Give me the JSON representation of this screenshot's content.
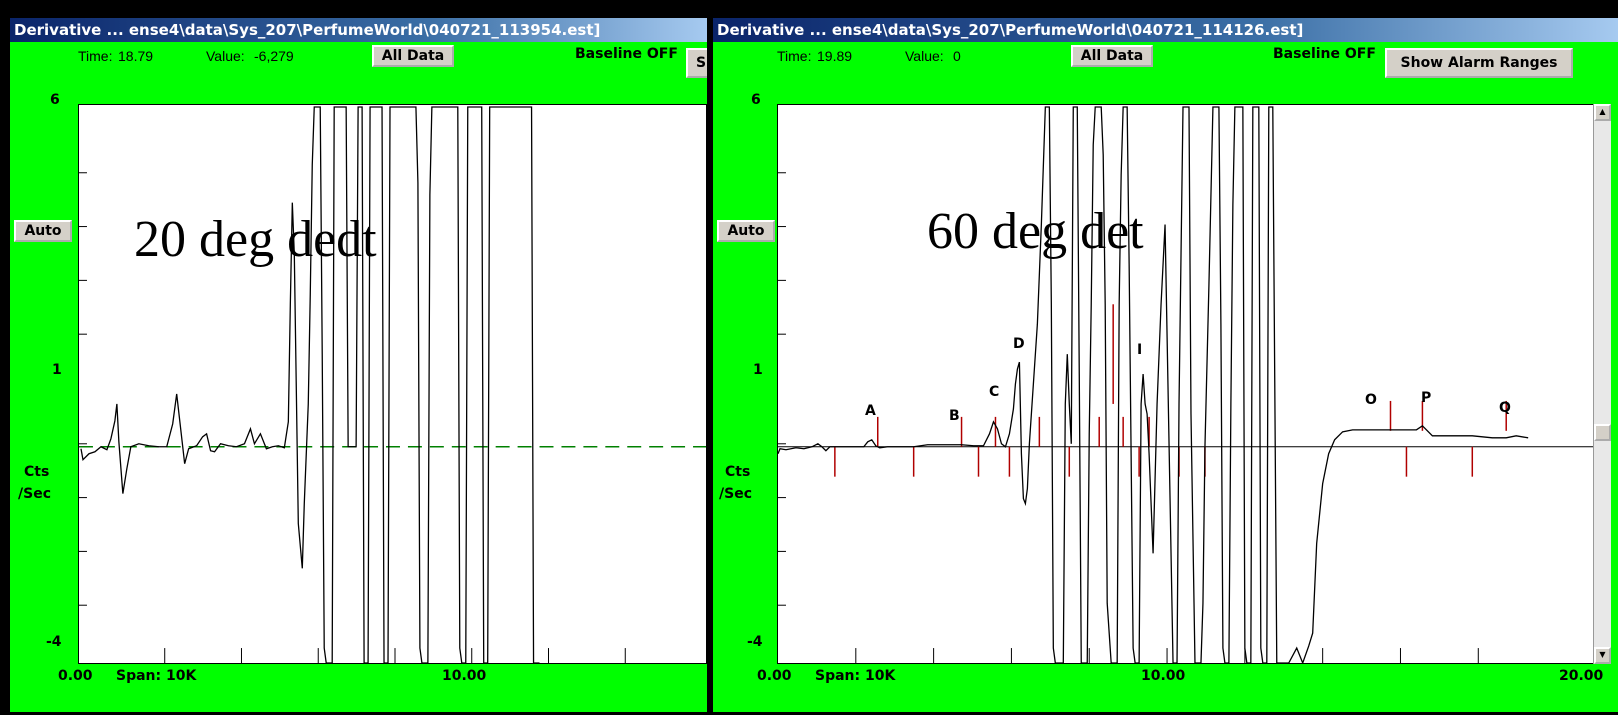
{
  "left": {
    "title": "Derivative ... ense4\\data\\Sys_207\\PerfumeWorld\\040721_113954.est]",
    "time_label": "Time:",
    "time_value": "18.79",
    "value_label": "Value:",
    "value_value": "-6,279",
    "all_data": "All Data",
    "baseline": "Baseline OFF",
    "cut_btn": "S",
    "auto": "Auto",
    "y_top": "6",
    "y_mid": "1",
    "y_bot": "-4",
    "y_unit1": "Cts",
    "y_unit2": "/Sec",
    "x_start": "0.00",
    "span": "Span: 10K",
    "x_mid": "10.00",
    "overlay": "20 deg dedt"
  },
  "right": {
    "title": "Derivative ... ense4\\data\\Sys_207\\PerfumeWorld\\040721_114126.est]",
    "time_label": "Time:",
    "time_value": "19.89",
    "value_label": "Value:",
    "value_value": "0",
    "all_data": "All Data",
    "baseline": "Baseline OFF",
    "alarm": "Show Alarm Ranges",
    "auto": "Auto",
    "y_top": "6",
    "y_mid": "1",
    "y_bot": "-4",
    "y_unit1": "Cts",
    "y_unit2": "/Sec",
    "x_start": "0.00",
    "span": "Span: 10K",
    "x_mid": "10.00",
    "x_end": "20.00",
    "overlay": "60 deg det",
    "peaks": [
      "A",
      "B",
      "C",
      "D",
      "I",
      "O",
      "P",
      "Q"
    ]
  },
  "colors": {
    "window_bg": "#00ff00",
    "baseline_dash": "#008000",
    "markers": "#b00000"
  },
  "icons": {
    "scroll_up": "up-arrow-icon",
    "scroll_down": "down-arrow-icon"
  }
}
